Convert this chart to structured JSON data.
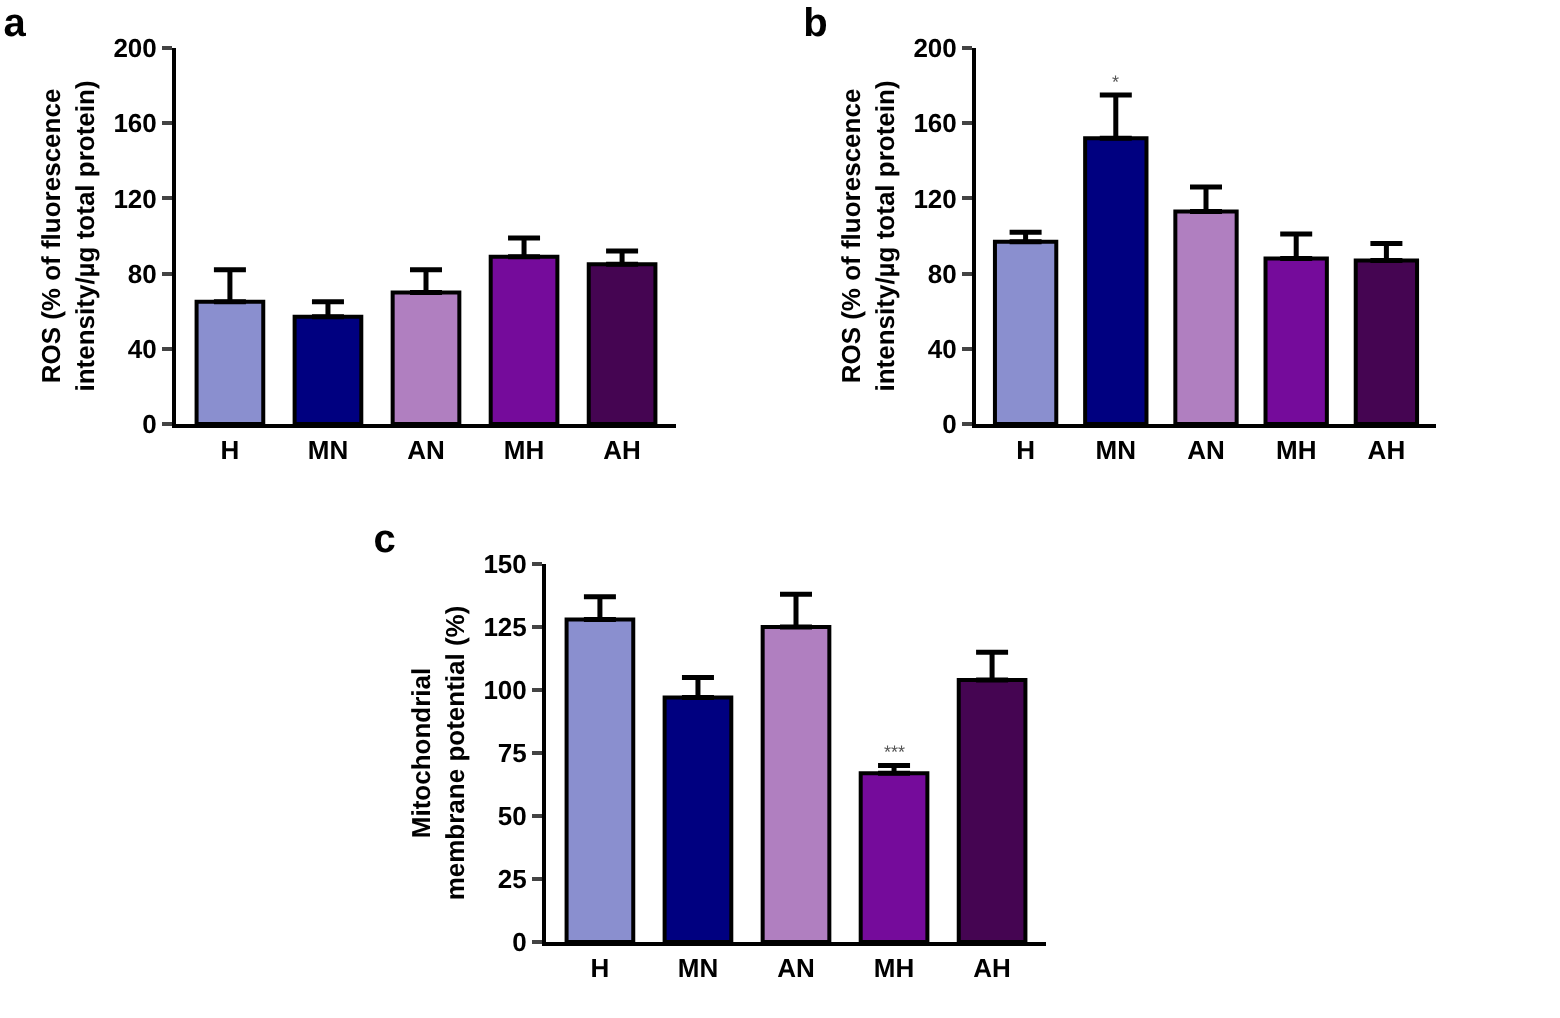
{
  "chart_data": [
    {
      "type": "bar",
      "title": "a",
      "ylabel": "ROS (% of fluorescence intensity/µg total protein)",
      "categories": [
        "H",
        "MN",
        "AN",
        "MH",
        "AH"
      ],
      "values": [
        65,
        57,
        70,
        89,
        85
      ],
      "colors": [
        "#8a8fcf",
        "#000080",
        "#b07fc0",
        "#750b9b",
        "#450552"
      ],
      "errors": [
        [
          65,
          82
        ],
        [
          57,
          65
        ],
        [
          70,
          82
        ],
        [
          89,
          99
        ],
        [
          85,
          92
        ]
      ],
      "ylim": [
        0,
        200
      ],
      "yticks": [
        0,
        40,
        80,
        120,
        160,
        200
      ]
    },
    {
      "type": "bar",
      "title": "b",
      "ylabel": "ROS (% of fluorescence intensity/µg total protein)",
      "categories": [
        "H",
        "MN",
        "AN",
        "MH",
        "AH"
      ],
      "values": [
        97,
        152,
        113,
        88,
        87
      ],
      "colors": [
        "#8a8fcf",
        "#000080",
        "#b07fc0",
        "#750b9b",
        "#450552"
      ],
      "errors": [
        [
          97,
          102
        ],
        [
          152,
          175
        ],
        [
          113,
          126
        ],
        [
          88,
          101
        ],
        [
          87,
          96
        ]
      ],
      "ylim": [
        0,
        200
      ],
      "yticks": [
        0,
        40,
        80,
        120,
        160,
        200
      ],
      "annotations": [
        {
          "text": "*",
          "x": "MN",
          "y": 175
        }
      ]
    },
    {
      "type": "bar",
      "title": "c",
      "ylabel": "Mitochondrial membrane potential (%)",
      "categories": [
        "H",
        "MN",
        "AN",
        "MH",
        "AH"
      ],
      "values": [
        128,
        97,
        125,
        67,
        104
      ],
      "colors": [
        "#8a8fcf",
        "#000080",
        "#b07fc0",
        "#750b9b",
        "#450552"
      ],
      "errors": [
        [
          128,
          137
        ],
        [
          97,
          105
        ],
        [
          125,
          138
        ],
        [
          67,
          70
        ],
        [
          104,
          115
        ]
      ],
      "ylim": [
        0,
        150
      ],
      "yticks": [
        0,
        25,
        50,
        75,
        100,
        125,
        150
      ],
      "annotations": [
        {
          "text": "***",
          "x": "MH",
          "y": 70
        }
      ]
    }
  ]
}
